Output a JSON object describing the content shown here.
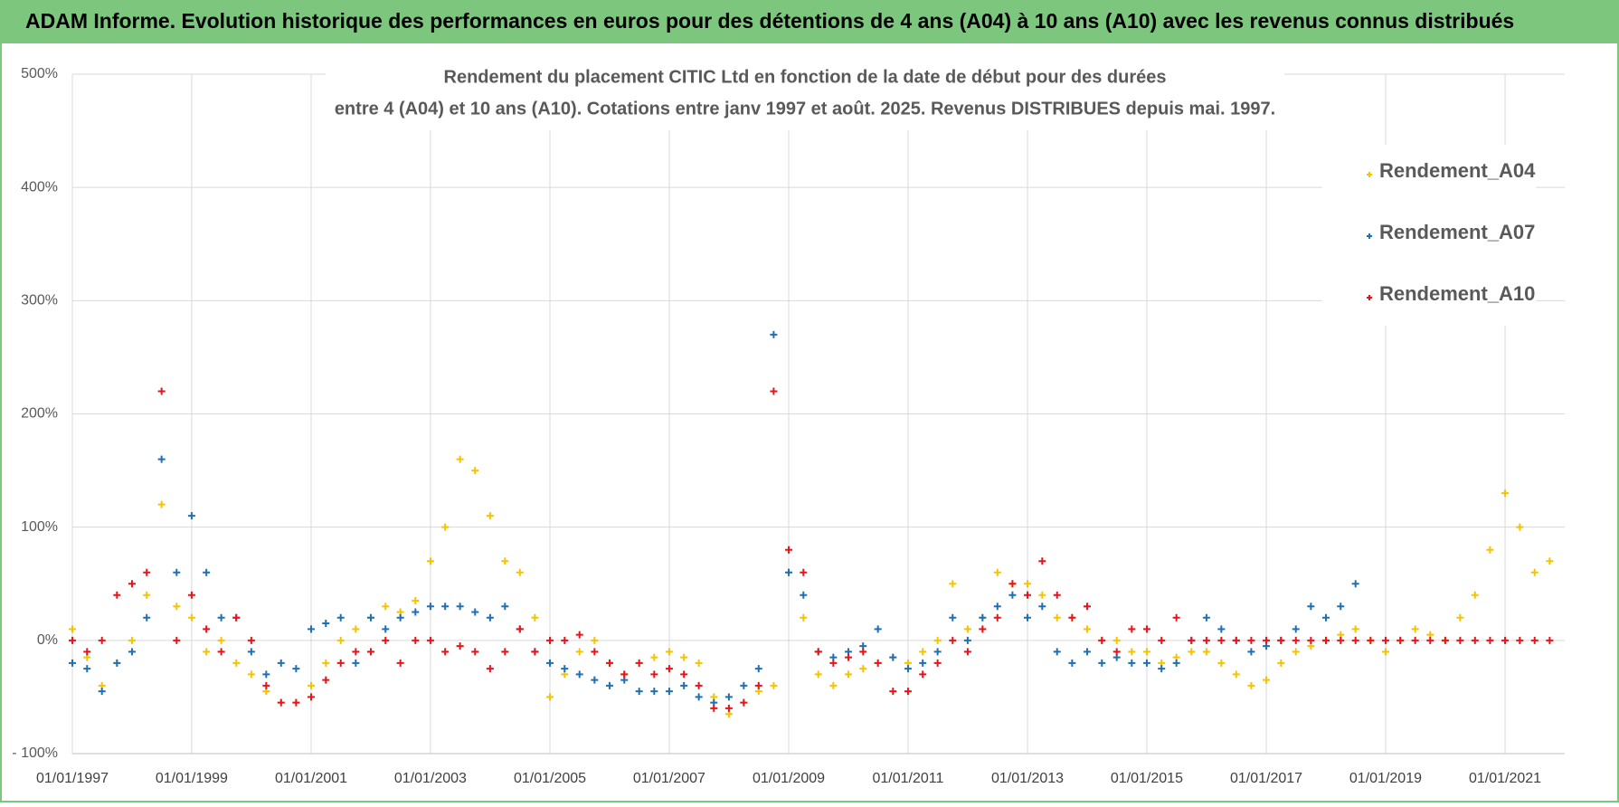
{
  "header": {
    "title": "ADAM Informe. Evolution historique des performances en euros pour des détentions de 4 ans (A04) à 10 ans (A10) avec les revenus connus distribués"
  },
  "chart_data": {
    "type": "scatter",
    "subtitle": [
      "Rendement du placement CITIC Ltd en fonction de la date de début pour des durées",
      "entre 4 (A04) et 10 ans (A10). Cotations entre janv 1997 et août. 2025. Revenus DISTRIBUES depuis mai. 1997."
    ],
    "x": [
      "01/01/1997",
      "01/04/1997",
      "01/07/1997",
      "01/10/1997",
      "01/01/1998",
      "01/04/1998",
      "01/07/1998",
      "01/10/1998",
      "01/01/1999",
      "01/04/1999",
      "01/07/1999",
      "01/10/1999",
      "01/01/2000",
      "01/04/2000",
      "01/07/2000",
      "01/10/2000",
      "01/01/2001",
      "01/04/2001",
      "01/07/2001",
      "01/10/2001",
      "01/01/2002",
      "01/04/2002",
      "01/07/2002",
      "01/10/2002",
      "01/01/2003",
      "01/04/2003",
      "01/07/2003",
      "01/10/2003",
      "01/01/2004",
      "01/04/2004",
      "01/07/2004",
      "01/10/2004",
      "01/01/2005",
      "01/04/2005",
      "01/07/2005",
      "01/10/2005",
      "01/01/2006",
      "01/04/2006",
      "01/07/2006",
      "01/10/2006",
      "01/01/2007",
      "01/04/2007",
      "01/07/2007",
      "01/10/2007",
      "01/01/2008",
      "01/04/2008",
      "01/07/2008",
      "01/10/2008",
      "01/01/2009",
      "01/04/2009",
      "01/07/2009",
      "01/10/2009",
      "01/01/2010",
      "01/04/2010",
      "01/07/2010",
      "01/10/2010",
      "01/01/2011",
      "01/04/2011",
      "01/07/2011",
      "01/10/2011",
      "01/01/2012",
      "01/04/2012",
      "01/07/2012",
      "01/10/2012",
      "01/01/2013",
      "01/04/2013",
      "01/07/2013",
      "01/10/2013",
      "01/01/2014",
      "01/04/2014",
      "01/07/2014",
      "01/10/2014",
      "01/01/2015",
      "01/04/2015",
      "01/07/2015",
      "01/10/2015",
      "01/01/2016",
      "01/04/2016",
      "01/07/2016",
      "01/10/2016",
      "01/01/2017",
      "01/04/2017",
      "01/07/2017",
      "01/10/2017",
      "01/01/2018",
      "01/04/2018",
      "01/07/2018",
      "01/10/2018",
      "01/01/2019",
      "01/04/2019",
      "01/07/2019",
      "01/10/2019",
      "01/01/2020",
      "01/04/2020",
      "01/07/2020",
      "01/10/2020",
      "01/01/2021",
      "01/04/2021",
      "01/07/2021",
      "01/10/2021"
    ],
    "series": [
      {
        "name": "Rendement_A04",
        "color": "#f5c400",
        "values": [
          10,
          -15,
          -40,
          -20,
          0,
          40,
          120,
          30,
          20,
          -10,
          0,
          -20,
          -30,
          -45,
          -55,
          -55,
          -40,
          -20,
          0,
          10,
          20,
          30,
          25,
          35,
          70,
          100,
          160,
          150,
          110,
          70,
          60,
          20,
          -50,
          -30,
          -10,
          0,
          -20,
          -30,
          -20,
          -15,
          -10,
          -15,
          -20,
          -50,
          -65,
          -55,
          -45,
          -40,
          60,
          20,
          -30,
          -40,
          -30,
          -25,
          -20,
          -15,
          -20,
          -10,
          0,
          50,
          10,
          20,
          60,
          50,
          50,
          40,
          20,
          20,
          10,
          0,
          0,
          -10,
          -10,
          -20,
          -15,
          -10,
          -10,
          -20,
          -30,
          -40,
          -35,
          -20,
          -10,
          -5,
          0,
          5,
          10,
          0,
          -10,
          0,
          10,
          5,
          0,
          20,
          40,
          80,
          130,
          100,
          60,
          70
        ]
      },
      {
        "name": "Rendement_A07",
        "color": "#1f6fb4",
        "values": [
          -20,
          -25,
          -45,
          -20,
          -10,
          20,
          160,
          60,
          110,
          60,
          20,
          20,
          -10,
          -30,
          -20,
          -25,
          10,
          15,
          20,
          -20,
          20,
          10,
          20,
          25,
          30,
          30,
          30,
          25,
          20,
          30,
          10,
          -10,
          -20,
          -25,
          -30,
          -35,
          -40,
          -35,
          -45,
          -45,
          -45,
          -40,
          -50,
          -55,
          -50,
          -40,
          -25,
          270,
          60,
          40,
          -10,
          -15,
          -10,
          -5,
          10,
          -15,
          -25,
          -20,
          -10,
          20,
          0,
          20,
          30,
          40,
          20,
          30,
          -10,
          -20,
          -10,
          -20,
          -15,
          -20,
          -20,
          -25,
          -20,
          0,
          20,
          10,
          0,
          -10,
          -5,
          0,
          10,
          30,
          20,
          30,
          50,
          null,
          null,
          null,
          null,
          null,
          null,
          null,
          null,
          null,
          null,
          null,
          null,
          null
        ]
      },
      {
        "name": "Rendement_A10",
        "color": "#e8141c",
        "values": [
          0,
          -10,
          0,
          40,
          50,
          60,
          220,
          0,
          40,
          10,
          -10,
          20,
          0,
          -40,
          -55,
          -55,
          -50,
          -35,
          -20,
          -10,
          -10,
          0,
          -20,
          0,
          0,
          -10,
          -5,
          -10,
          -25,
          -10,
          10,
          -10,
          0,
          0,
          5,
          -10,
          -20,
          -30,
          -20,
          -30,
          -25,
          -30,
          -40,
          -60,
          -60,
          -55,
          -40,
          220,
          80,
          60,
          -10,
          -20,
          -15,
          -10,
          -20,
          -45,
          -45,
          -30,
          -20,
          0,
          -10,
          10,
          20,
          50,
          40,
          70,
          40,
          20,
          30,
          0,
          -10,
          10,
          10,
          0,
          20,
          0,
          0,
          0,
          0,
          0,
          0,
          0,
          0,
          0,
          0,
          0,
          0,
          0,
          0,
          0,
          0,
          0,
          0,
          0,
          0,
          0,
          0,
          0,
          0,
          0
        ]
      }
    ],
    "xlim": [
      "01/01/1997",
      "01/01/2022"
    ],
    "xticks": [
      "01/01/1997",
      "01/01/1999",
      "01/01/2001",
      "01/01/2003",
      "01/01/2005",
      "01/01/2007",
      "01/01/2009",
      "01/01/2011",
      "01/01/2013",
      "01/01/2015",
      "01/01/2017",
      "01/01/2019",
      "01/01/2021"
    ],
    "ylim": [
      -100,
      500
    ],
    "yticks": [
      {
        "value": -100,
        "label": "- 100%"
      },
      {
        "value": 0,
        "label": "0%"
      },
      {
        "value": 100,
        "label": "100%"
      },
      {
        "value": 200,
        "label": "200%"
      },
      {
        "value": 300,
        "label": "300%"
      },
      {
        "value": 400,
        "label": "400%"
      },
      {
        "value": 500,
        "label": "500%"
      }
    ],
    "grid": true,
    "legend": "right"
  }
}
